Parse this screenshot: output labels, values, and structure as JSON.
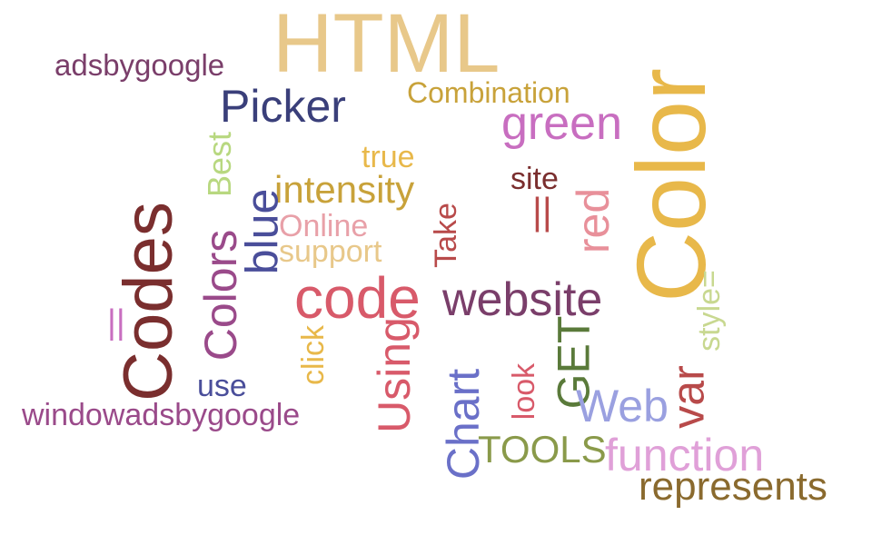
{
  "words": [
    {
      "text": "HTML",
      "color": "#E8C88A",
      "rotation": "horizontal"
    },
    {
      "text": "adsbygoogle",
      "color": "#7A3E6A",
      "rotation": "horizontal"
    },
    {
      "text": "Combination",
      "color": "#C8A23A",
      "rotation": "horizontal"
    },
    {
      "text": "Picker",
      "color": "#3A3F7A",
      "rotation": "horizontal"
    },
    {
      "text": "green",
      "color": "#C86EC0",
      "rotation": "horizontal"
    },
    {
      "text": "Color",
      "color": "#E8B84A",
      "rotation": "vertical"
    },
    {
      "text": "Best",
      "color": "#B8D880",
      "rotation": "vertical"
    },
    {
      "text": "true",
      "color": "#E8B84A",
      "rotation": "horizontal"
    },
    {
      "text": "site",
      "color": "#7A2E2E",
      "rotation": "horizontal"
    },
    {
      "text": "intensity",
      "color": "#C8A23A",
      "rotation": "horizontal"
    },
    {
      "text": "blue",
      "color": "#4A4E9A",
      "rotation": "vertical"
    },
    {
      "text": "||",
      "color": "#B84A4A",
      "rotation": "horizontal"
    },
    {
      "text": "red",
      "color": "#E8909A",
      "rotation": "vertical"
    },
    {
      "text": "Online",
      "color": "#E8A0A8",
      "rotation": "horizontal"
    },
    {
      "text": "support",
      "color": "#E8C88A",
      "rotation": "horizontal"
    },
    {
      "text": "Take",
      "color": "#B84A4A",
      "rotation": "vertical"
    },
    {
      "text": "Codes",
      "color": "#7A2E2E",
      "rotation": "vertical"
    },
    {
      "text": "Colors",
      "color": "#9A4A8A",
      "rotation": "vertical"
    },
    {
      "text": "code",
      "color": "#D85A6A",
      "rotation": "horizontal"
    },
    {
      "text": "website",
      "color": "#7A3E6A",
      "rotation": "horizontal"
    },
    {
      "text": "style=",
      "color": "#C8D890",
      "rotation": "vertical"
    },
    {
      "text": "||",
      "color": "#C86EC0",
      "rotation": "horizontal"
    },
    {
      "text": "click",
      "color": "#E8B84A",
      "rotation": "vertical"
    },
    {
      "text": "Using",
      "color": "#D85A6A",
      "rotation": "vertical"
    },
    {
      "text": "GET",
      "color": "#5A7A3A",
      "rotation": "vertical"
    },
    {
      "text": "look",
      "color": "#D85A6A",
      "rotation": "vertical"
    },
    {
      "text": "var",
      "color": "#B84A4A",
      "rotation": "vertical"
    },
    {
      "text": "use",
      "color": "#4A4E9A",
      "rotation": "horizontal"
    },
    {
      "text": "windowadsbygoogle",
      "color": "#9A4A8A",
      "rotation": "horizontal"
    },
    {
      "text": "Chart",
      "color": "#6A70C8",
      "rotation": "vertical"
    },
    {
      "text": "Web",
      "color": "#9AA0E0",
      "rotation": "horizontal"
    },
    {
      "text": "TOOLS",
      "color": "#8A9A4A",
      "rotation": "horizontal"
    },
    {
      "text": "function",
      "color": "#E0A0D8",
      "rotation": "horizontal"
    },
    {
      "text": "represents",
      "color": "#8A6A2E",
      "rotation": "horizontal"
    }
  ]
}
